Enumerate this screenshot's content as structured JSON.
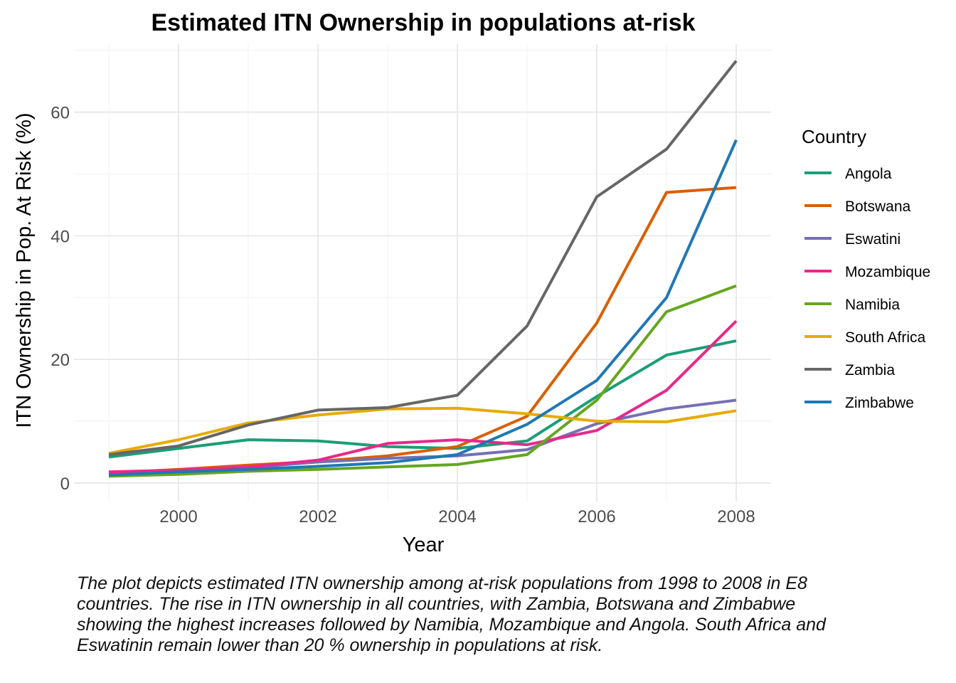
{
  "chart_data": {
    "type": "line",
    "title": "Estimated ITN Ownership in populations at-risk",
    "xlabel": "Year",
    "ylabel": "ITN Ownership in Pop. At Risk (%)",
    "xlim": [
      1998.5,
      2008.5
    ],
    "ylim": [
      -3,
      71
    ],
    "x_ticks": [
      2000,
      2002,
      2004,
      2006,
      2008
    ],
    "y_ticks": [
      0,
      20,
      40,
      60
    ],
    "grid": true,
    "legend_title": "Country",
    "legend_position": "right",
    "x": [
      1999,
      2000,
      2001,
      2002,
      2003,
      2004,
      2005,
      2006,
      2007,
      2008
    ],
    "series": [
      {
        "name": "Angola",
        "color": "#1b9e77",
        "values": [
          4.2,
          5.6,
          7.0,
          6.8,
          5.9,
          5.6,
          6.8,
          14.0,
          20.7,
          23.0
        ]
      },
      {
        "name": "Botswana",
        "color": "#d95f02",
        "values": [
          1.6,
          2.2,
          2.9,
          3.5,
          4.4,
          5.9,
          10.8,
          25.9,
          47.0,
          47.8
        ]
      },
      {
        "name": "Eswatini",
        "color": "#7570b3",
        "values": [
          1.6,
          2.0,
          2.5,
          3.4,
          4.0,
          4.4,
          5.4,
          9.6,
          12.0,
          13.4
        ]
      },
      {
        "name": "Mozambique",
        "color": "#e7298a",
        "values": [
          1.8,
          2.1,
          2.6,
          3.7,
          6.4,
          7.0,
          6.2,
          8.5,
          15.0,
          26.2
        ]
      },
      {
        "name": "Namibia",
        "color": "#66a61e",
        "values": [
          1.1,
          1.4,
          1.9,
          2.2,
          2.6,
          3.0,
          4.6,
          13.4,
          27.7,
          31.9
        ]
      },
      {
        "name": "South Africa",
        "color": "#e6ab02",
        "values": [
          4.8,
          7.0,
          9.7,
          11.0,
          12.0,
          12.1,
          11.2,
          10.0,
          9.9,
          11.7
        ]
      },
      {
        "name": "Zambia",
        "color": "#666666",
        "values": [
          4.6,
          6.0,
          9.4,
          11.8,
          12.2,
          14.2,
          25.4,
          46.3,
          54.0,
          68.3
        ]
      },
      {
        "name": "Zimbabwe",
        "color": "#1f78b4",
        "values": [
          1.3,
          1.8,
          2.2,
          2.7,
          3.3,
          4.6,
          9.5,
          16.6,
          30.0,
          55.5
        ]
      }
    ]
  },
  "caption": "The plot depicts estimated ITN ownership among at-risk populations from 1998 to 2008 in E8 countries. The rise in ITN ownership in all countries, with Zambia, Botswana and Zimbabwe showing the highest increases followed by Namibia, Mozambique and Angola. South Africa and Eswatinin remain lower than 20 % ownership in populations at risk."
}
